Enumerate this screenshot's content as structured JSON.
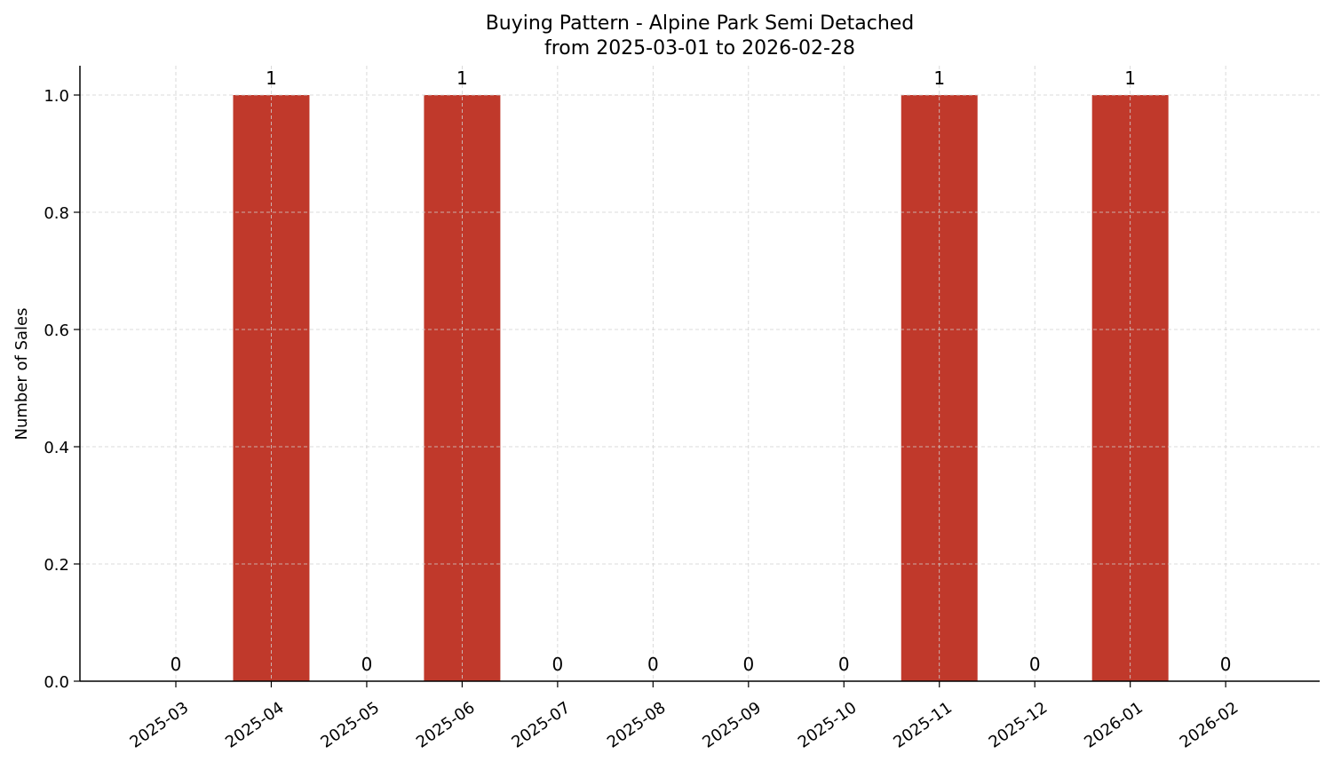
{
  "chart_data": {
    "type": "bar",
    "title": "Buying Pattern - Alpine Park Semi Detached",
    "subtitle": "from 2025-03-01 to 2026-02-28",
    "xlabel": "",
    "ylabel": "Number of Sales",
    "categories": [
      "2025-03",
      "2025-04",
      "2025-05",
      "2025-06",
      "2025-07",
      "2025-08",
      "2025-09",
      "2025-10",
      "2025-11",
      "2025-12",
      "2026-01",
      "2026-02"
    ],
    "values": [
      0,
      1,
      0,
      1,
      0,
      0,
      0,
      0,
      1,
      0,
      1,
      0
    ],
    "ylim": [
      0,
      1.05
    ],
    "yticks": [
      "0.0",
      "0.2",
      "0.4",
      "0.6",
      "0.8",
      "1.0"
    ],
    "grid": true,
    "bar_color": "#c0392b"
  }
}
